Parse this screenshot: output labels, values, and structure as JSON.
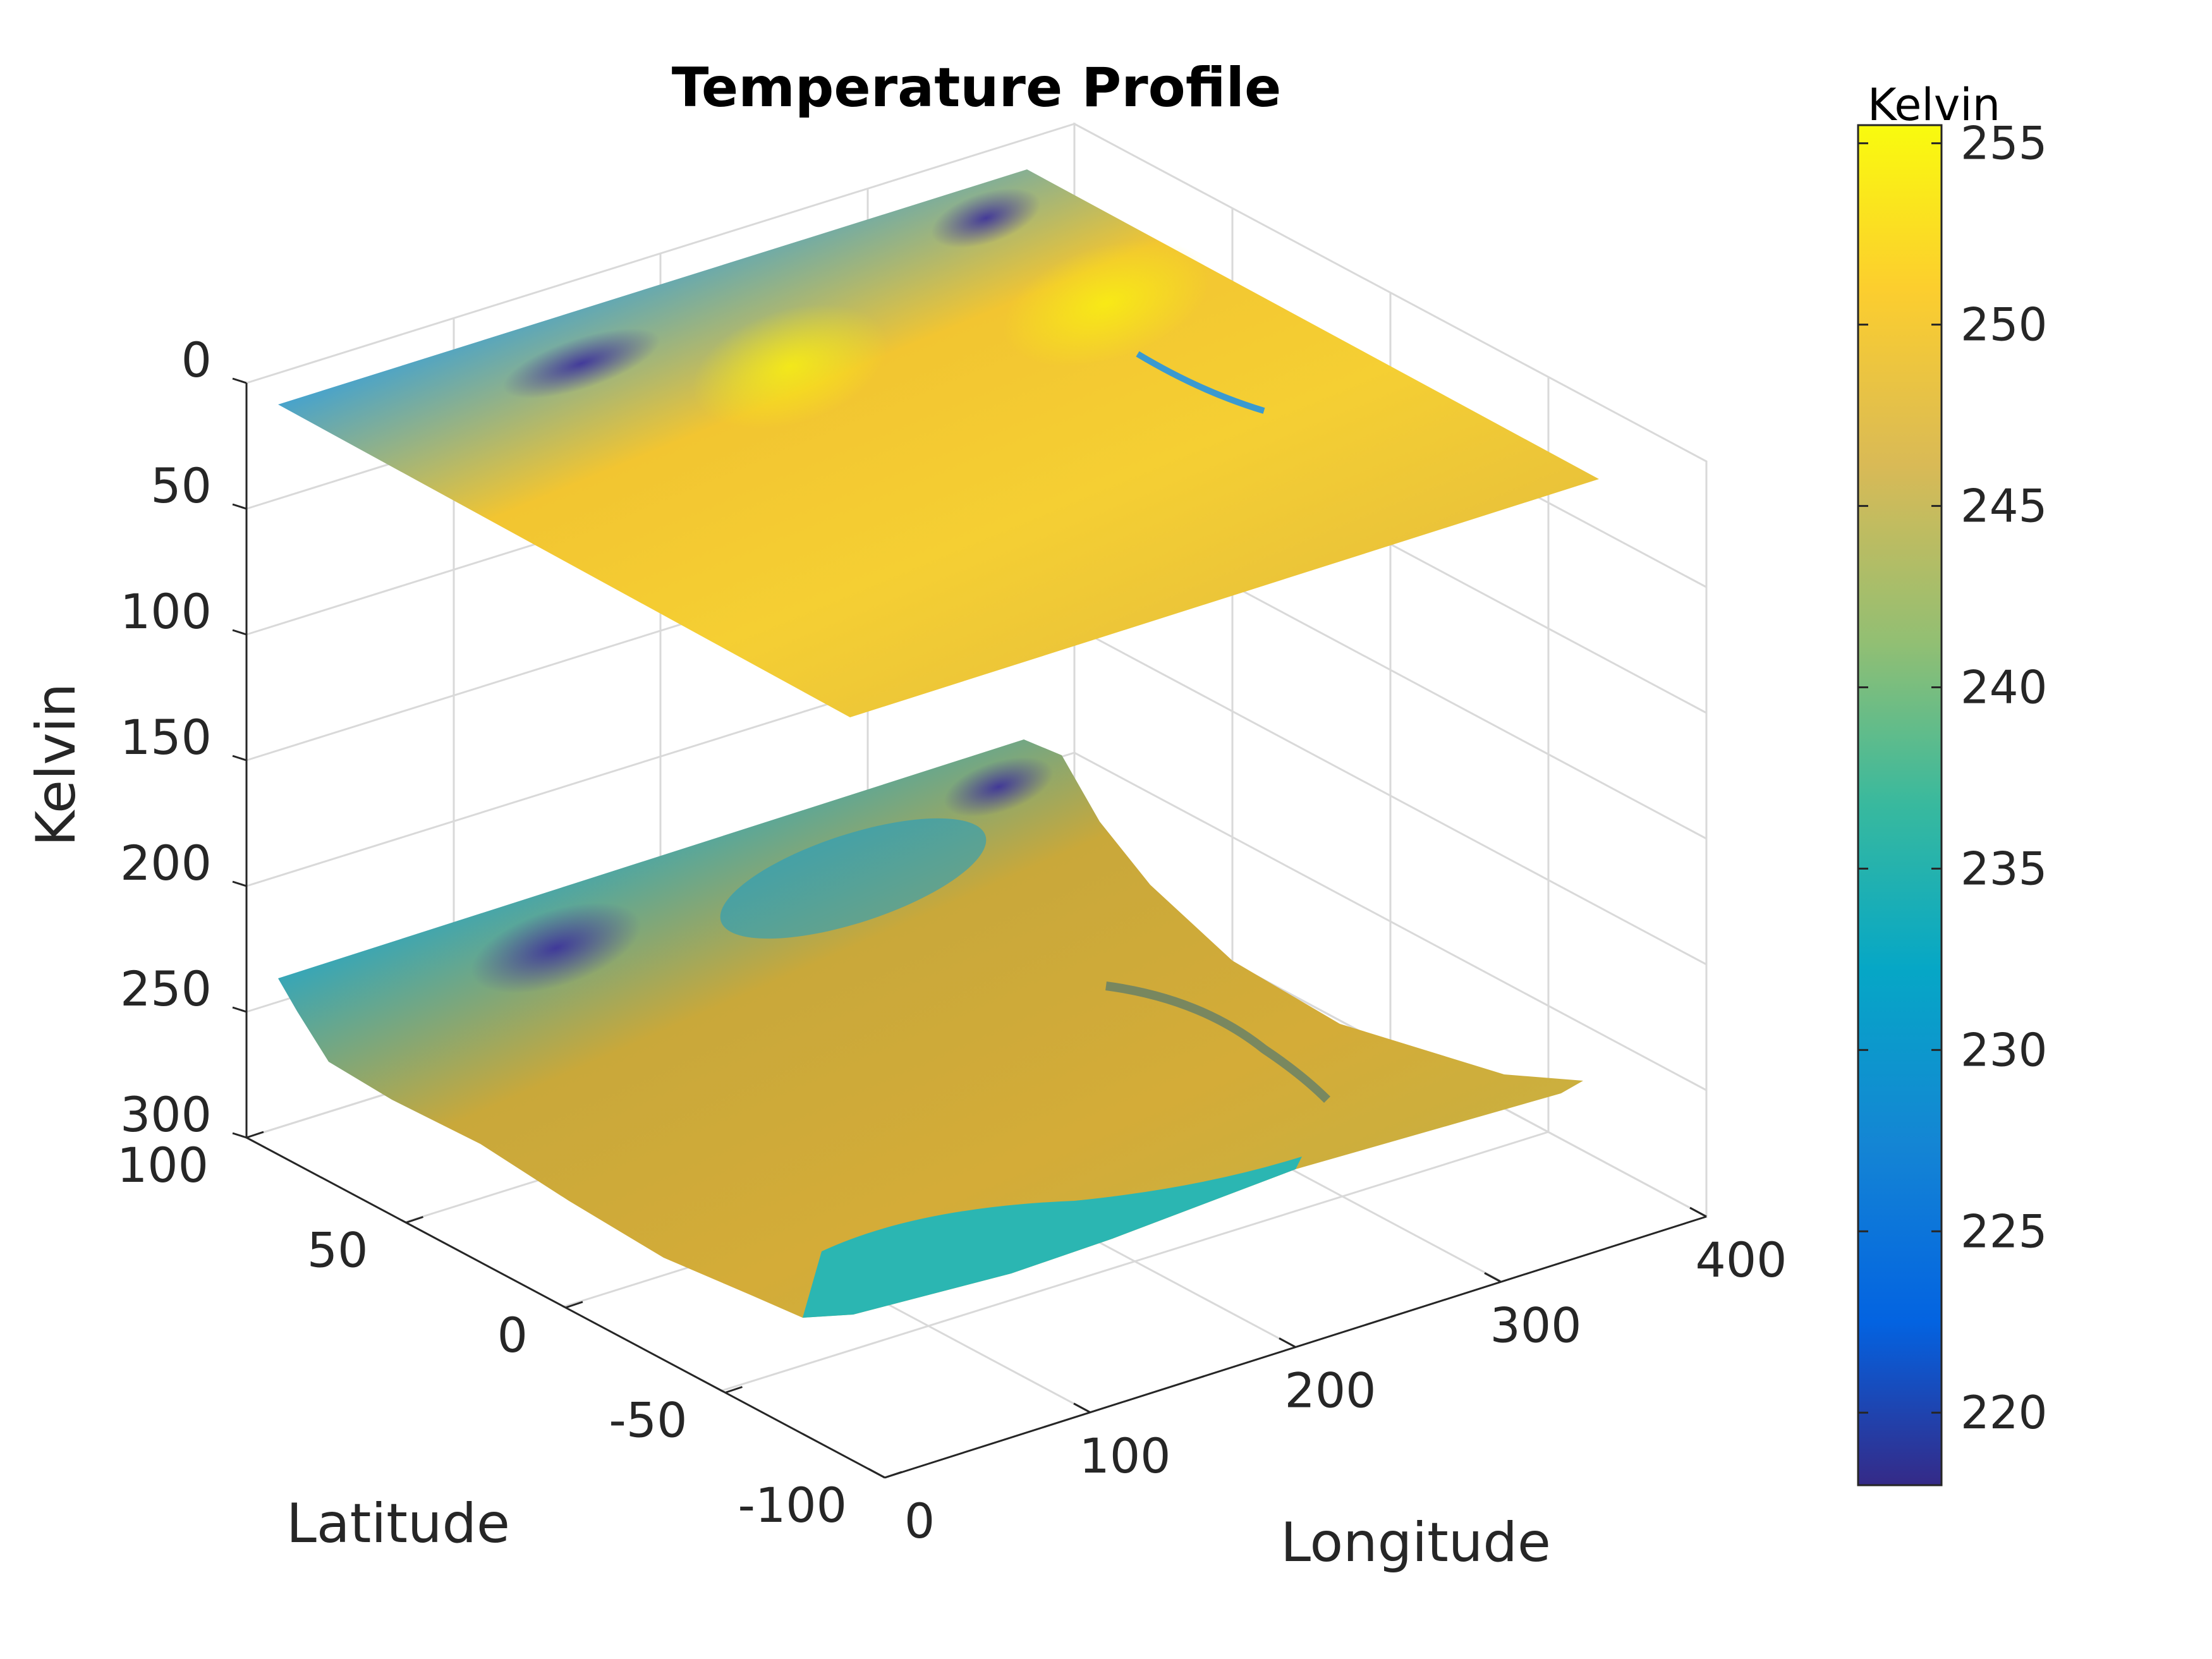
{
  "chart_data": {
    "type": "surface3d",
    "title": "Temperature Profile",
    "axes": {
      "x": {
        "label": "Longitude",
        "ticks": [
          "0",
          "100",
          "200",
          "300",
          "400"
        ],
        "range": [
          0,
          400
        ]
      },
      "y": {
        "label": "Latitude",
        "ticks": [
          "-100",
          "-50",
          "0",
          "50",
          "100"
        ],
        "range": [
          -100,
          100
        ]
      },
      "z": {
        "label": "Kelvin",
        "ticks": [
          "0",
          "50",
          "100",
          "150",
          "200",
          "250",
          "300"
        ],
        "range": [
          0,
          300
        ],
        "direction": "reverse"
      }
    },
    "grid": true,
    "surfaces": [
      {
        "z_level": 0,
        "description_role": "upper layer",
        "color_range": [
          219,
          255
        ]
      },
      {
        "z_level": 250,
        "description_role": "lower terrain-like layer",
        "color_range": [
          219,
          255
        ]
      }
    ],
    "colorbar": {
      "title": "Kelvin",
      "ticks": [
        "255",
        "250",
        "245",
        "240",
        "235",
        "230",
        "225",
        "220"
      ],
      "tick_values": [
        255,
        250,
        245,
        240,
        235,
        230,
        225,
        220
      ],
      "range": [
        218,
        255.5
      ],
      "colormap": "parula",
      "colors": [
        "#352a87",
        "#0363e1",
        "#1485d4",
        "#06a7c6",
        "#38b99e",
        "#92bf73",
        "#d9ba56",
        "#fcce2e",
        "#f9fb0e"
      ]
    }
  }
}
